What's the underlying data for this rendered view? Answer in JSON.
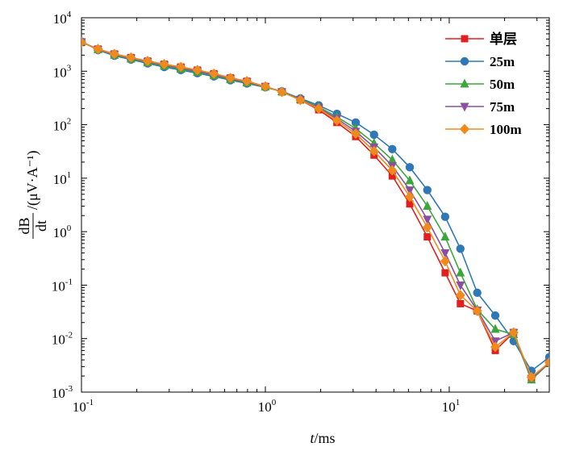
{
  "chart_data": {
    "type": "line",
    "xscale": "log",
    "yscale": "log",
    "xlim": [
      0.1,
      35
    ],
    "ylim": [
      0.001,
      10000
    ],
    "x_ticks": [
      0.1,
      1,
      10
    ],
    "y_ticks": [
      0.001,
      0.01,
      0.1,
      1,
      10,
      100,
      1000,
      10000
    ],
    "x_tick_labels": [
      {
        "base": "10",
        "exp": "-1"
      },
      {
        "base": "10",
        "exp": "0"
      },
      {
        "base": "10",
        "exp": "1"
      }
    ],
    "y_tick_labels": [
      {
        "base": "10",
        "exp": "-3"
      },
      {
        "base": "10",
        "exp": "-2"
      },
      {
        "base": "10",
        "exp": "-1"
      },
      {
        "base": "10",
        "exp": "0"
      },
      {
        "base": "10",
        "exp": "1"
      },
      {
        "base": "10",
        "exp": "2"
      },
      {
        "base": "10",
        "exp": "3"
      },
      {
        "base": "10",
        "exp": "4"
      }
    ],
    "xlabel": {
      "var": "t",
      "unit": "/ms"
    },
    "ylabel": {
      "num": "dB",
      "den": "dt",
      "unit": "/(μV·A⁻¹)"
    },
    "legend_position": "top-right",
    "grid": false,
    "x": [
      0.1,
      0.123,
      0.151,
      0.186,
      0.229,
      0.282,
      0.347,
      0.427,
      0.525,
      0.646,
      0.794,
      1.0,
      1.23,
      1.55,
      1.95,
      2.45,
      3.1,
      3.9,
      4.9,
      6.1,
      7.6,
      9.5,
      11.5,
      14.2,
      17.8,
      22.4,
      28.0,
      35.0
    ],
    "series": [
      {
        "name": "单层",
        "color": "#e02020",
        "marker": "square",
        "values": [
          3500,
          2600,
          2100,
          1800,
          1550,
          1350,
          1200,
          1050,
          900,
          750,
          650,
          520,
          410,
          290,
          190,
          110,
          60,
          27,
          11,
          3.3,
          0.8,
          0.17,
          0.045,
          0.033,
          0.006,
          0.013,
          0.0018,
          0.0035
        ]
      },
      {
        "name": "25m",
        "color": "#2f78b5",
        "marker": "circle",
        "values": [
          3600,
          2500,
          1950,
          1650,
          1400,
          1200,
          1050,
          920,
          800,
          680,
          590,
          500,
          420,
          310,
          230,
          160,
          110,
          65,
          35,
          16,
          6,
          1.9,
          0.48,
          0.072,
          0.027,
          0.009,
          0.0025,
          0.0045
        ]
      },
      {
        "name": "50m",
        "color": "#3ca63c",
        "marker": "triangle-up",
        "values": [
          3550,
          2550,
          2000,
          1700,
          1450,
          1250,
          1100,
          960,
          830,
          700,
          610,
          510,
          415,
          300,
          215,
          140,
          85,
          45,
          22,
          9,
          3,
          0.8,
          0.17,
          0.035,
          0.015,
          0.012,
          0.0017,
          0.0035
        ]
      },
      {
        "name": "75m",
        "color": "#8a4f9e",
        "marker": "triangle-down",
        "values": [
          3550,
          2550,
          2050,
          1750,
          1500,
          1300,
          1150,
          1000,
          860,
          720,
          630,
          515,
          412,
          295,
          205,
          130,
          75,
          38,
          17,
          6,
          1.7,
          0.4,
          0.1,
          0.034,
          0.009,
          0.013,
          0.0018,
          0.0035
        ]
      },
      {
        "name": "100m",
        "color": "#f08a1c",
        "marker": "diamond",
        "values": [
          3500,
          2600,
          2100,
          1800,
          1550,
          1350,
          1200,
          1050,
          900,
          750,
          650,
          520,
          410,
          290,
          200,
          120,
          68,
          32,
          14,
          4.5,
          1.2,
          0.28,
          0.065,
          0.033,
          0.007,
          0.013,
          0.0019,
          0.0036
        ]
      }
    ]
  }
}
